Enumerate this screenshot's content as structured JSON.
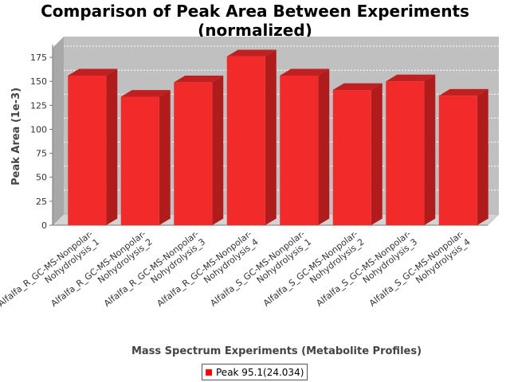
{
  "chart_data": {
    "type": "bar",
    "title": [
      "Comparison of Peak Area Between Experiments",
      "(normalized)"
    ],
    "xlabel": "Mass Spectrum Experiments (Metabolite Profiles)",
    "ylabel": "Peak Area (1e-3)",
    "categories": [
      [
        "Alfalfa_R_GC-MS-Nonpolar-",
        "Nohydrolysis_1"
      ],
      [
        "Alfalfa_R_GC-MS-Nonpolar-",
        "Nohydrolysis_2"
      ],
      [
        "Alfalfa_R_GC-MS-Nonpolar-",
        "Nohydrolysis_3"
      ],
      [
        "Alfalfa_R_GC-MS-Nonpolar-",
        "Nohydrolysis_4"
      ],
      [
        "Alfalfa_S_GC-MS-Nonpolar-",
        "Nohydrolysis_1"
      ],
      [
        "Alfalfa_S_GC-MS-Nonpolar-",
        "Nohydrolysis_2"
      ],
      [
        "Alfalfa_S_GC-MS-Nonpolar-",
        "Nohydrolysis_3"
      ],
      [
        "Alfalfa_S_GC-MS-Nonpolar-",
        "Nohydrolysis_4"
      ]
    ],
    "series": [
      {
        "name": "Peak 95.1(24.034)",
        "color": "#ff0000",
        "values": [
          156,
          134,
          149,
          176,
          156,
          141,
          150,
          135
        ]
      }
    ],
    "ylim": [
      0,
      185
    ],
    "yticks": [
      0,
      25,
      50,
      75,
      100,
      125,
      150,
      175
    ],
    "grid": true,
    "legend_position": "bottom",
    "plot_background": "#c0c0c0"
  }
}
